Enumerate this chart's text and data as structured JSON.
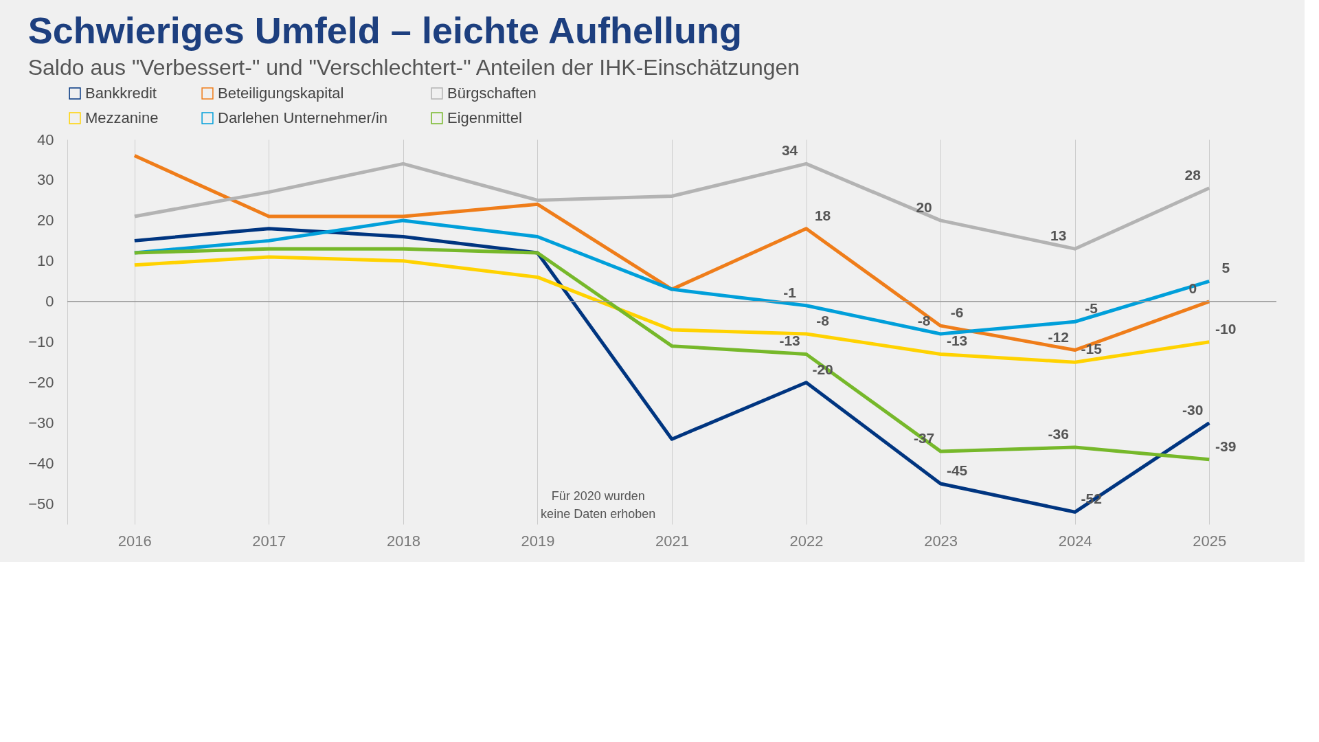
{
  "chart_data": {
    "type": "line",
    "title": "Schwieriges Umfeld – leichte Aufhellung",
    "subtitle": "Saldo aus \"Verbessert-\" und \"Verschlechtert-\" Anteilen der IHK-Einschätzungen",
    "categories": [
      "2016",
      "2017",
      "2018",
      "2019",
      "2021",
      "2022",
      "2023",
      "2024",
      "2025"
    ],
    "series": [
      {
        "name": "Bankkredit",
        "color": "#003580",
        "values": [
          15,
          18,
          16,
          12,
          -34,
          -20,
          -45,
          -52,
          -30
        ],
        "value_labels": [
          null,
          null,
          null,
          null,
          null,
          "-20",
          "-45",
          "-52",
          "-30"
        ]
      },
      {
        "name": "Beteiligungskapital",
        "color": "#ef7d1a",
        "values": [
          36,
          21,
          21,
          24,
          3,
          18,
          -6,
          -12,
          0
        ],
        "value_labels": [
          null,
          null,
          null,
          null,
          null,
          "18",
          "-6",
          "-12",
          "0"
        ]
      },
      {
        "name": "Bürgschaften",
        "color": "#b3b3b3",
        "values": [
          21,
          27,
          34,
          25,
          26,
          34,
          20,
          13,
          28
        ],
        "value_labels": [
          null,
          null,
          null,
          null,
          null,
          "34",
          "20",
          "13",
          "28"
        ]
      },
      {
        "name": "Mezzanine",
        "color": "#ffd200",
        "values": [
          9,
          11,
          10,
          6,
          -7,
          -8,
          -13,
          -15,
          -10
        ],
        "value_labels": [
          null,
          null,
          null,
          null,
          null,
          "-8",
          "-13",
          "-15",
          "-10"
        ]
      },
      {
        "name": "Darlehen Unternehmer/in",
        "color": "#009fda",
        "values": [
          12,
          15,
          20,
          16,
          3,
          -1,
          -8,
          -5,
          5
        ],
        "value_labels": [
          null,
          null,
          null,
          null,
          null,
          "-1",
          "-8",
          "-5",
          "5"
        ]
      },
      {
        "name": "Eigenmittel",
        "color": "#76b82a",
        "values": [
          12,
          13,
          13,
          12,
          -11,
          -13,
          -37,
          -36,
          -39
        ],
        "value_labels": [
          null,
          null,
          null,
          null,
          null,
          "-13",
          "-37",
          "-36",
          "-39"
        ]
      }
    ],
    "ylim": [
      -55,
      40
    ],
    "yticks": [
      -50,
      -40,
      -30,
      -20,
      -10,
      0,
      10,
      20,
      30,
      40
    ],
    "ref_lines": [
      {
        "axis": "y",
        "value": 0,
        "color": "#999999"
      }
    ],
    "grid": "x",
    "legend": "top left",
    "marker": "none",
    "line_style": "solid",
    "annotations": [
      "Für 2020 wurden keine Daten erhoben"
    ]
  }
}
